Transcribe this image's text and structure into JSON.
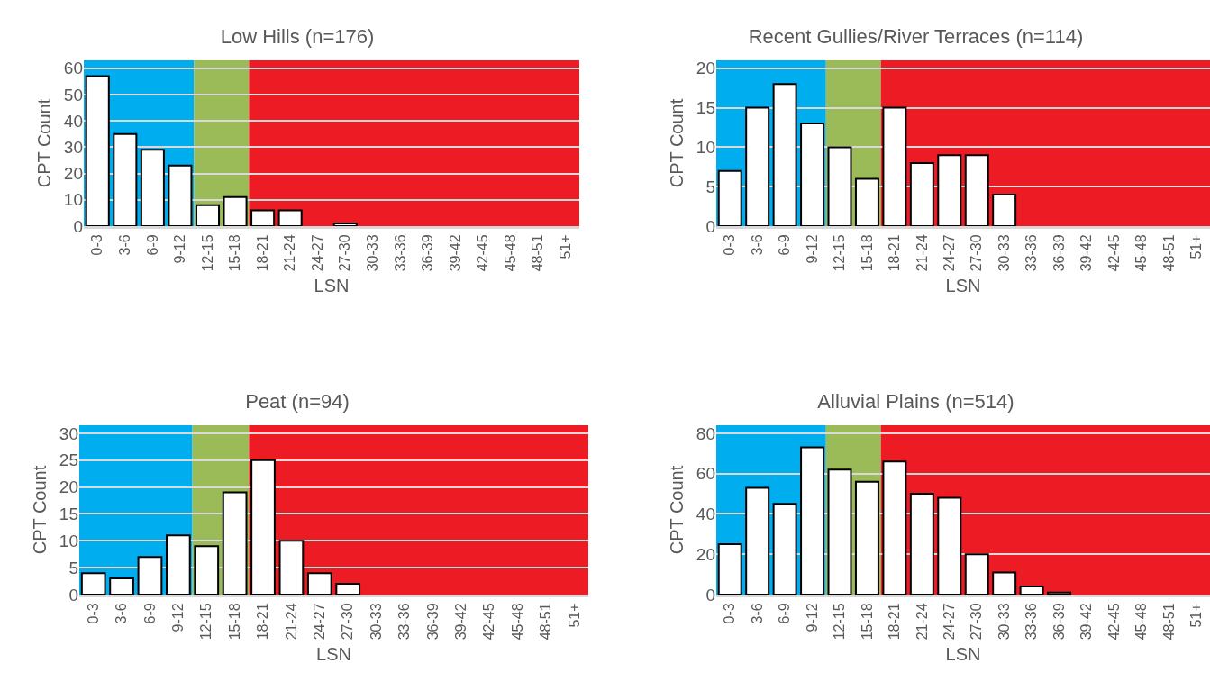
{
  "chart_data": [
    {
      "type": "bar",
      "title": "Low Hills (n=176)",
      "xlabel": "LSN",
      "ylabel": "CPT Count",
      "categories": [
        "0-3",
        "3-6",
        "6-9",
        "9-12",
        "12-15",
        "15-18",
        "18-21",
        "21-24",
        "24-27",
        "27-30",
        "30-33",
        "33-36",
        "36-39",
        "39-42",
        "42-45",
        "45-48",
        "48-51",
        "51+"
      ],
      "values": [
        57,
        35,
        29,
        23,
        8,
        11,
        6,
        6,
        0,
        1,
        0,
        0,
        0,
        0,
        0,
        0,
        0,
        0
      ],
      "color": "#ffffff",
      "ylim": [
        0,
        63
      ],
      "yticks": [
        0,
        10,
        20,
        30,
        40,
        50,
        60
      ],
      "grid": "y",
      "bands": [
        {
          "axis": "x",
          "from": "0-3",
          "to": "9-12",
          "color": "#00adef"
        },
        {
          "axis": "x",
          "from": "12-15",
          "to": "15-18",
          "color": "#9bbb59"
        },
        {
          "axis": "x",
          "from": "18-21",
          "to": "51+",
          "color": "#ed1c24"
        }
      ]
    },
    {
      "type": "bar",
      "title": "Recent Gullies/River Terraces (n=114)",
      "xlabel": "LSN",
      "ylabel": "CPT Count",
      "categories": [
        "0-3",
        "3-6",
        "6-9",
        "9-12",
        "12-15",
        "15-18",
        "18-21",
        "21-24",
        "24-27",
        "27-30",
        "30-33",
        "33-36",
        "36-39",
        "39-42",
        "42-45",
        "45-48",
        "48-51",
        "51+"
      ],
      "values": [
        7,
        15,
        18,
        13,
        10,
        6,
        15,
        8,
        9,
        9,
        4,
        0,
        0,
        0,
        0,
        0,
        0,
        0
      ],
      "color": "#ffffff",
      "ylim": [
        0,
        21
      ],
      "yticks": [
        0,
        5,
        10,
        15,
        20
      ],
      "grid": "y",
      "bands": [
        {
          "axis": "x",
          "from": "0-3",
          "to": "9-12",
          "color": "#00adef"
        },
        {
          "axis": "x",
          "from": "12-15",
          "to": "15-18",
          "color": "#9bbb59"
        },
        {
          "axis": "x",
          "from": "18-21",
          "to": "51+",
          "color": "#ed1c24"
        }
      ]
    },
    {
      "type": "bar",
      "title": "Peat (n=94)",
      "xlabel": "LSN",
      "ylabel": "CPT Count",
      "categories": [
        "0-3",
        "3-6",
        "6-9",
        "9-12",
        "12-15",
        "15-18",
        "18-21",
        "21-24",
        "24-27",
        "27-30",
        "30-33",
        "33-36",
        "36-39",
        "39-42",
        "42-45",
        "45-48",
        "48-51",
        "51+"
      ],
      "values": [
        4,
        3,
        7,
        11,
        9,
        19,
        25,
        10,
        4,
        2,
        0,
        0,
        0,
        0,
        0,
        0,
        0,
        0
      ],
      "color": "#ffffff",
      "ylim": [
        0,
        31.5
      ],
      "yticks": [
        0,
        5,
        10,
        15,
        20,
        25,
        30
      ],
      "grid": "y",
      "bands": [
        {
          "axis": "x",
          "from": "0-3",
          "to": "9-12",
          "color": "#00adef"
        },
        {
          "axis": "x",
          "from": "12-15",
          "to": "15-18",
          "color": "#9bbb59"
        },
        {
          "axis": "x",
          "from": "18-21",
          "to": "51+",
          "color": "#ed1c24"
        }
      ]
    },
    {
      "type": "bar",
      "title": "Alluvial Plains (n=514)",
      "xlabel": "LSN",
      "ylabel": "CPT Count",
      "categories": [
        "0-3",
        "3-6",
        "6-9",
        "9-12",
        "12-15",
        "15-18",
        "18-21",
        "21-24",
        "24-27",
        "27-30",
        "30-33",
        "33-36",
        "36-39",
        "39-42",
        "42-45",
        "45-48",
        "48-51",
        "51+"
      ],
      "values": [
        25,
        53,
        45,
        73,
        62,
        56,
        66,
        50,
        48,
        20,
        11,
        4,
        1,
        0,
        0,
        0,
        0,
        0
      ],
      "color": "#ffffff",
      "ylim": [
        0,
        84
      ],
      "yticks": [
        0,
        20,
        40,
        60,
        80
      ],
      "grid": "y",
      "bands": [
        {
          "axis": "x",
          "from": "0-3",
          "to": "9-12",
          "color": "#00adef"
        },
        {
          "axis": "x",
          "from": "12-15",
          "to": "15-18",
          "color": "#9bbb59"
        },
        {
          "axis": "x",
          "from": "18-21",
          "to": "51+",
          "color": "#ed1c24"
        }
      ]
    }
  ]
}
